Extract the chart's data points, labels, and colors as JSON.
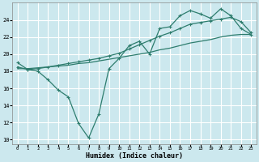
{
  "xlabel": "Humidex (Indice chaleur)",
  "bg_color": "#cce8ee",
  "grid_color": "#ffffff",
  "line_color": "#2e7d6e",
  "xlim": [
    -0.5,
    23.5
  ],
  "ylim": [
    9.5,
    26.0
  ],
  "xticks": [
    0,
    1,
    2,
    3,
    4,
    5,
    6,
    7,
    8,
    9,
    10,
    11,
    12,
    13,
    14,
    15,
    16,
    17,
    18,
    19,
    20,
    21,
    22,
    23
  ],
  "yticks": [
    10,
    12,
    14,
    16,
    18,
    20,
    22,
    24
  ],
  "line1_x": [
    0,
    1,
    2,
    3,
    4,
    5,
    6,
    7,
    8,
    9,
    10,
    11,
    12,
    13,
    14,
    15,
    16,
    17,
    18,
    19,
    20,
    21,
    22,
    23
  ],
  "line1_y": [
    19.0,
    18.2,
    18.0,
    17.0,
    15.8,
    15.0,
    11.9,
    10.2,
    13.0,
    18.3,
    19.5,
    21.0,
    21.5,
    20.0,
    23.0,
    23.2,
    24.5,
    25.1,
    24.7,
    24.2,
    25.3,
    24.5,
    23.0,
    22.3
  ],
  "line2_x": [
    0,
    1,
    2,
    3,
    4,
    5,
    6,
    7,
    8,
    9,
    10,
    11,
    12,
    13,
    14,
    15,
    16,
    17,
    18,
    19,
    20,
    21,
    22,
    23
  ],
  "line2_y": [
    18.5,
    18.2,
    18.3,
    18.5,
    18.7,
    18.9,
    19.1,
    19.3,
    19.5,
    19.8,
    20.1,
    20.6,
    21.1,
    21.6,
    22.1,
    22.5,
    23.0,
    23.5,
    23.7,
    23.9,
    24.1,
    24.3,
    23.8,
    22.5
  ],
  "line3_x": [
    0,
    1,
    2,
    3,
    4,
    5,
    6,
    7,
    8,
    9,
    10,
    11,
    12,
    13,
    14,
    15,
    16,
    17,
    18,
    19,
    20,
    21,
    22,
    23
  ],
  "line3_y": [
    18.3,
    18.3,
    18.4,
    18.5,
    18.6,
    18.7,
    18.9,
    19.0,
    19.2,
    19.4,
    19.6,
    19.8,
    20.0,
    20.2,
    20.5,
    20.7,
    21.0,
    21.3,
    21.5,
    21.7,
    22.0,
    22.2,
    22.3,
    22.3
  ],
  "marker_size": 3.5,
  "linewidth": 0.9
}
